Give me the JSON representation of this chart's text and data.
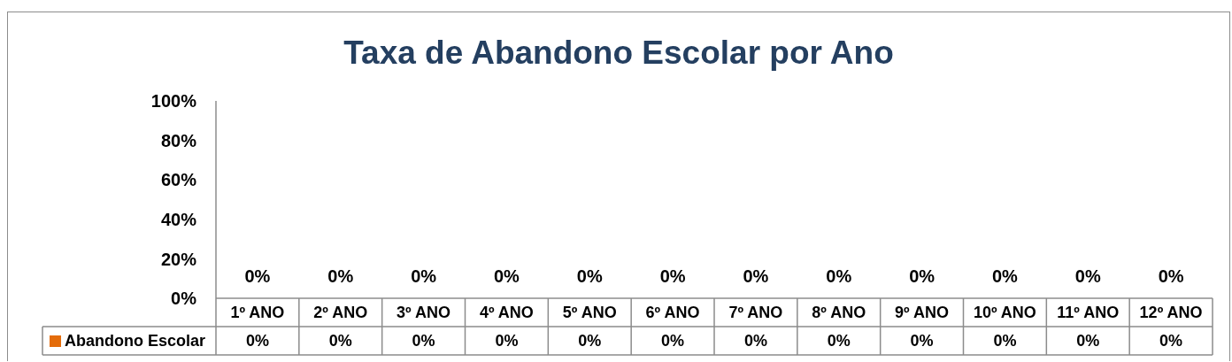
{
  "chart_data": {
    "type": "bar",
    "title": "Taxa de Abandono Escolar por Ano",
    "categories": [
      "1º ANO",
      "2º ANO",
      "3º ANO",
      "4º ANO",
      "5º ANO",
      "6º ANO",
      "7º ANO",
      "8º ANO",
      "9º ANO",
      "10º ANO",
      "11º ANO",
      "12º ANO"
    ],
    "series": [
      {
        "name": "Abandono Escolar",
        "color": "#e46c0a",
        "values": [
          0,
          0,
          0,
          0,
          0,
          0,
          0,
          0,
          0,
          0,
          0,
          0
        ],
        "value_labels": [
          "0%",
          "0%",
          "0%",
          "0%",
          "0%",
          "0%",
          "0%",
          "0%",
          "0%",
          "0%",
          "0%",
          "0%"
        ]
      }
    ],
    "ylim": [
      0,
      100
    ],
    "yticks": [
      {
        "value": 0,
        "label": "0%"
      },
      {
        "value": 20,
        "label": "20%"
      },
      {
        "value": 40,
        "label": "40%"
      },
      {
        "value": 60,
        "label": "60%"
      },
      {
        "value": 80,
        "label": "80%"
      },
      {
        "value": 100,
        "label": "100%"
      }
    ],
    "legend": "bottom left"
  }
}
